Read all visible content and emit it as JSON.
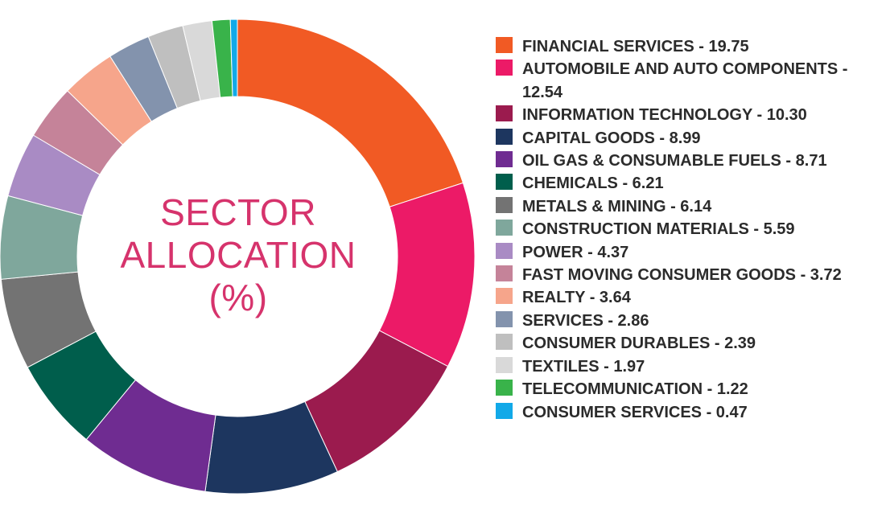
{
  "center_title": {
    "line1": "SECTOR",
    "line2": "ALLOCATION",
    "line3": "(%)"
  },
  "chart_data": {
    "type": "pie",
    "donut": true,
    "title": "SECTOR ALLOCATION (%)",
    "legend_position": "right",
    "start_angle_deg": 0,
    "direction": "clockwise",
    "slices": [
      {
        "label": "FINANCIAL SERVICES - 19.75",
        "name": "FINANCIAL SERVICES",
        "value": 19.75,
        "color": "#f15a24"
      },
      {
        "label": "AUTOMOBILE AND AUTO COMPONENTS - 12.54",
        "name": "AUTOMOBILE AND AUTO COMPONENTS",
        "value": 12.54,
        "color": "#ec1a67"
      },
      {
        "label": "INFORMATION TECHNOLOGY - 10.30",
        "name": "INFORMATION TECHNOLOGY",
        "value": 10.3,
        "color": "#9b1b4e"
      },
      {
        "label": "CAPITAL GOODS - 8.99",
        "name": "CAPITAL GOODS",
        "value": 8.99,
        "color": "#1d365f"
      },
      {
        "label": "OIL GAS & CONSUMABLE FUELS - 8.71",
        "name": "OIL GAS & CONSUMABLE FUELS",
        "value": 8.71,
        "color": "#6f2c91"
      },
      {
        "label": "CHEMICALS - 6.21",
        "name": "CHEMICALS",
        "value": 6.21,
        "color": "#005e4c"
      },
      {
        "label": "METALS & MINING - 6.14",
        "name": "METALS & MINING",
        "value": 6.14,
        "color": "#737373"
      },
      {
        "label": "CONSTRUCTION MATERIALS - 5.59",
        "name": "CONSTRUCTION MATERIALS",
        "value": 5.59,
        "color": "#7fa79c"
      },
      {
        "label": "POWER - 4.37",
        "name": "POWER",
        "value": 4.37,
        "color": "#a98bc4"
      },
      {
        "label": "FAST MOVING CONSUMER GOODS - 3.72",
        "name": "FAST MOVING CONSUMER GOODS",
        "value": 3.72,
        "color": "#c58399"
      },
      {
        "label": "REALTY - 3.64",
        "name": "REALTY",
        "value": 3.64,
        "color": "#f6a58b"
      },
      {
        "label": "SERVICES - 2.86",
        "name": "SERVICES",
        "value": 2.86,
        "color": "#8393ad"
      },
      {
        "label": "CONSUMER DURABLES - 2.39",
        "name": "CONSUMER DURABLES",
        "value": 2.39,
        "color": "#bfbfbf"
      },
      {
        "label": "TEXTILES - 1.97",
        "name": "TEXTILES",
        "value": 1.97,
        "color": "#d9d9d9"
      },
      {
        "label": "TELECOMMUNICATION - 1.22",
        "name": "TELECOMMUNICATION",
        "value": 1.22,
        "color": "#39b34a"
      },
      {
        "label": "CONSUMER SERVICES  - 0.47",
        "name": "CONSUMER SERVICES",
        "value": 0.47,
        "color": "#12a9e8"
      }
    ]
  }
}
